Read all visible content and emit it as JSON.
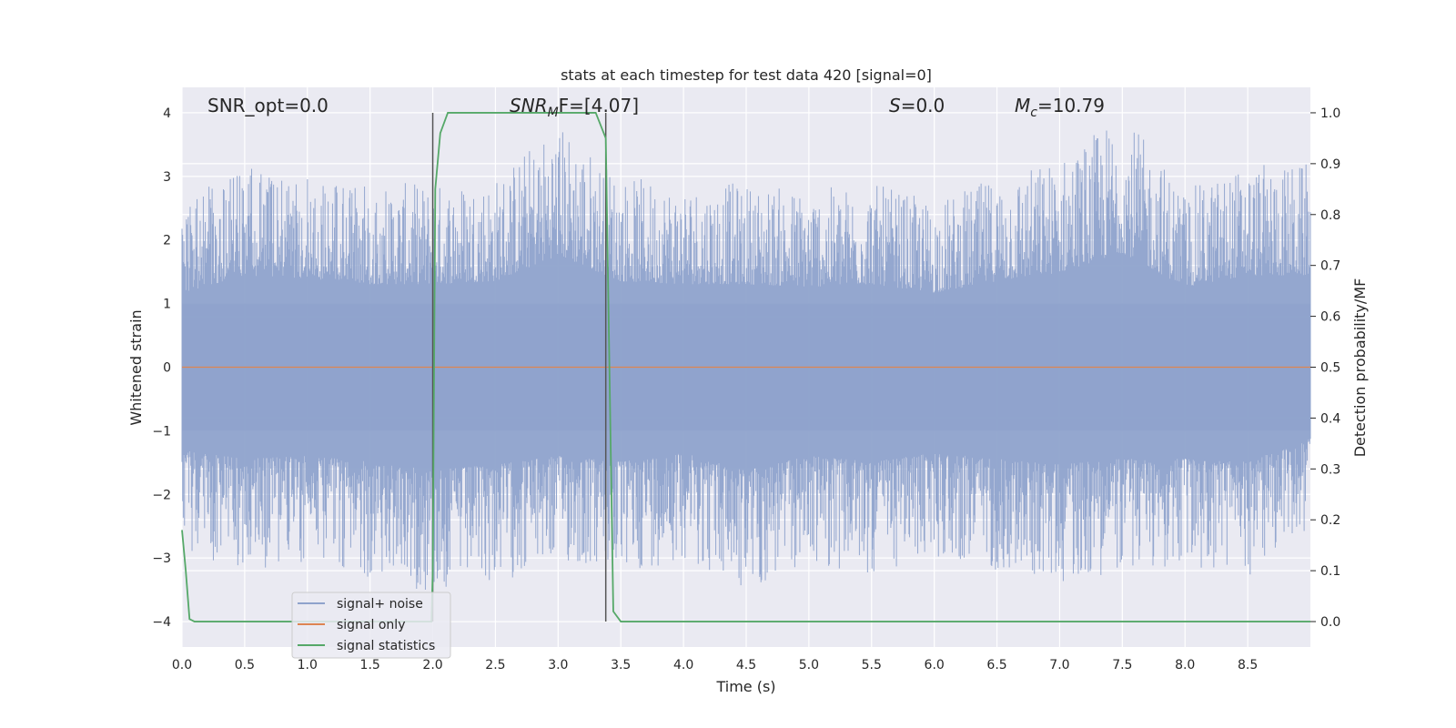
{
  "chart_data": {
    "type": "line",
    "title": "stats at each timestep for test data 420 [signal=0]",
    "xlabel": "Time (s)",
    "ylabel": "Whitened strain",
    "ylabel_right": "Detection probability/MF",
    "xlim": [
      0.0,
      9.0
    ],
    "ylim": [
      -4.4,
      4.4
    ],
    "ylim_right": [
      -0.05,
      1.05
    ],
    "grid": true,
    "x_ticks": [
      "0.0",
      "0.5",
      "1.0",
      "1.5",
      "2.0",
      "2.5",
      "3.0",
      "3.5",
      "4.0",
      "4.5",
      "5.0",
      "5.5",
      "6.0",
      "6.5",
      "7.0",
      "7.5",
      "8.0",
      "8.5"
    ],
    "y_ticks": [
      "4",
      "3",
      "2",
      "1",
      "0",
      "−1",
      "−2",
      "−3",
      "−4"
    ],
    "y_ticks_right": [
      "1.0",
      "0.9",
      "0.8",
      "0.7",
      "0.6",
      "0.5",
      "0.4",
      "0.3",
      "0.2",
      "0.1",
      "0.0"
    ],
    "annotations": {
      "snr_opt": "SNR_opt=0.0",
      "snr_mf_main": "SNR",
      "snr_mf_sub": "M",
      "snr_mf_rest": "F=[4.07]",
      "s_main": "S",
      "s_rest": "=0.0",
      "mc_main": "M",
      "mc_sub": "c",
      "mc_rest": "=10.79"
    },
    "vertical_lines": [
      2.0,
      3.38
    ],
    "legend": {
      "placement": "lower-left",
      "entries": [
        "signal+ noise",
        "signal only",
        "signal statistics"
      ]
    },
    "series": [
      {
        "name": "signal+ noise",
        "color": "#8fa3cc",
        "envelope": {
          "x": [
            0.0,
            0.5,
            1.0,
            1.5,
            2.0,
            2.5,
            3.0,
            3.5,
            4.0,
            4.5,
            5.0,
            5.5,
            6.0,
            6.5,
            7.0,
            7.5,
            8.0,
            8.5,
            9.0
          ],
          "upper": [
            2.6,
            3.2,
            3.1,
            2.9,
            2.9,
            3.0,
            3.9,
            3.0,
            2.9,
            2.9,
            2.8,
            2.9,
            2.6,
            3.0,
            3.3,
            4.0,
            2.8,
            3.2,
            3.2
          ],
          "lower": [
            -2.9,
            -3.2,
            -3.1,
            -3.3,
            -3.6,
            -3.4,
            -3.1,
            -3.3,
            -3.0,
            -3.6,
            -3.1,
            -3.3,
            -3.0,
            -3.2,
            -3.4,
            -3.2,
            -3.2,
            -3.3,
            -2.5
          ]
        }
      },
      {
        "name": "signal only",
        "color": "#dd8452",
        "x": [
          0.0,
          9.0
        ],
        "y": [
          0.0,
          0.0
        ]
      },
      {
        "name": "signal statistics",
        "color": "#55a868",
        "axis": "right",
        "x": [
          0.0,
          0.03,
          0.06,
          0.1,
          0.2,
          1.5,
          1.99,
          2.0,
          2.02,
          2.06,
          2.12,
          2.3,
          3.0,
          3.3,
          3.38,
          3.44,
          3.5,
          4.0,
          9.0
        ],
        "y": [
          0.18,
          0.1,
          0.005,
          0.0,
          0.0,
          0.0,
          0.0,
          0.1,
          0.85,
          0.96,
          1.0,
          1.0,
          1.0,
          1.0,
          0.95,
          0.02,
          0.0,
          0.0,
          0.0
        ]
      }
    ]
  }
}
